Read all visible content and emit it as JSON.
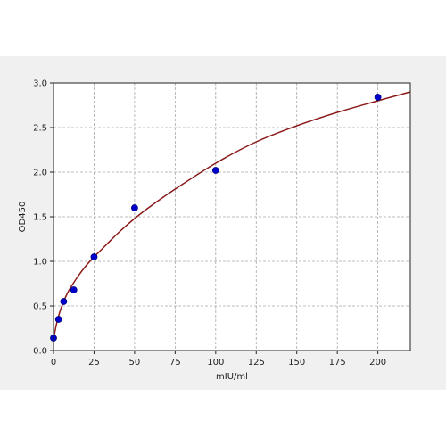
{
  "colors": {
    "figure_band": "#f0f0f0",
    "plot_background": "#ffffff",
    "grid": "#a6a6a6",
    "axes": "#222222",
    "curve": "#8b1a1a",
    "points": "#0000cc",
    "point_edge": "#000066"
  },
  "chart_data": {
    "type": "scatter",
    "title": "",
    "xlabel": "mIU/ml",
    "ylabel": "OD450",
    "xlim": [
      0,
      220
    ],
    "ylim": [
      0,
      3.0
    ],
    "grid": true,
    "grid_style": "dashed",
    "legend": "none",
    "x_ticks": [
      0,
      25,
      50,
      75,
      100,
      125,
      150,
      175,
      200
    ],
    "x_tick_labels": [
      "0",
      "25",
      "50",
      "75",
      "100",
      "125",
      "150",
      "175",
      "200"
    ],
    "y_ticks": [
      0,
      0.5,
      1.0,
      1.5,
      2.0,
      2.5,
      3.0
    ],
    "y_tick_labels": [
      "0.0",
      "0.5",
      "1.0",
      "1.5",
      "2.0",
      "2.5",
      "3.0"
    ],
    "series": [
      {
        "kind": "points",
        "x": [
          0,
          3.125,
          6.25,
          12.5,
          25,
          50,
          100,
          200
        ],
        "y": [
          0.14,
          0.35,
          0.55,
          0.68,
          1.05,
          1.6,
          2.02,
          2.84
        ]
      },
      {
        "kind": "fitted-curve",
        "x": [
          0,
          2,
          4,
          6,
          8,
          10,
          15,
          20,
          25,
          30,
          40,
          50,
          60,
          75,
          100,
          125,
          150,
          175,
          200,
          220
        ],
        "y": [
          0.13,
          0.31,
          0.44,
          0.54,
          0.62,
          0.69,
          0.83,
          0.95,
          1.05,
          1.14,
          1.32,
          1.48,
          1.62,
          1.81,
          2.1,
          2.34,
          2.52,
          2.67,
          2.8,
          2.9
        ]
      }
    ]
  }
}
